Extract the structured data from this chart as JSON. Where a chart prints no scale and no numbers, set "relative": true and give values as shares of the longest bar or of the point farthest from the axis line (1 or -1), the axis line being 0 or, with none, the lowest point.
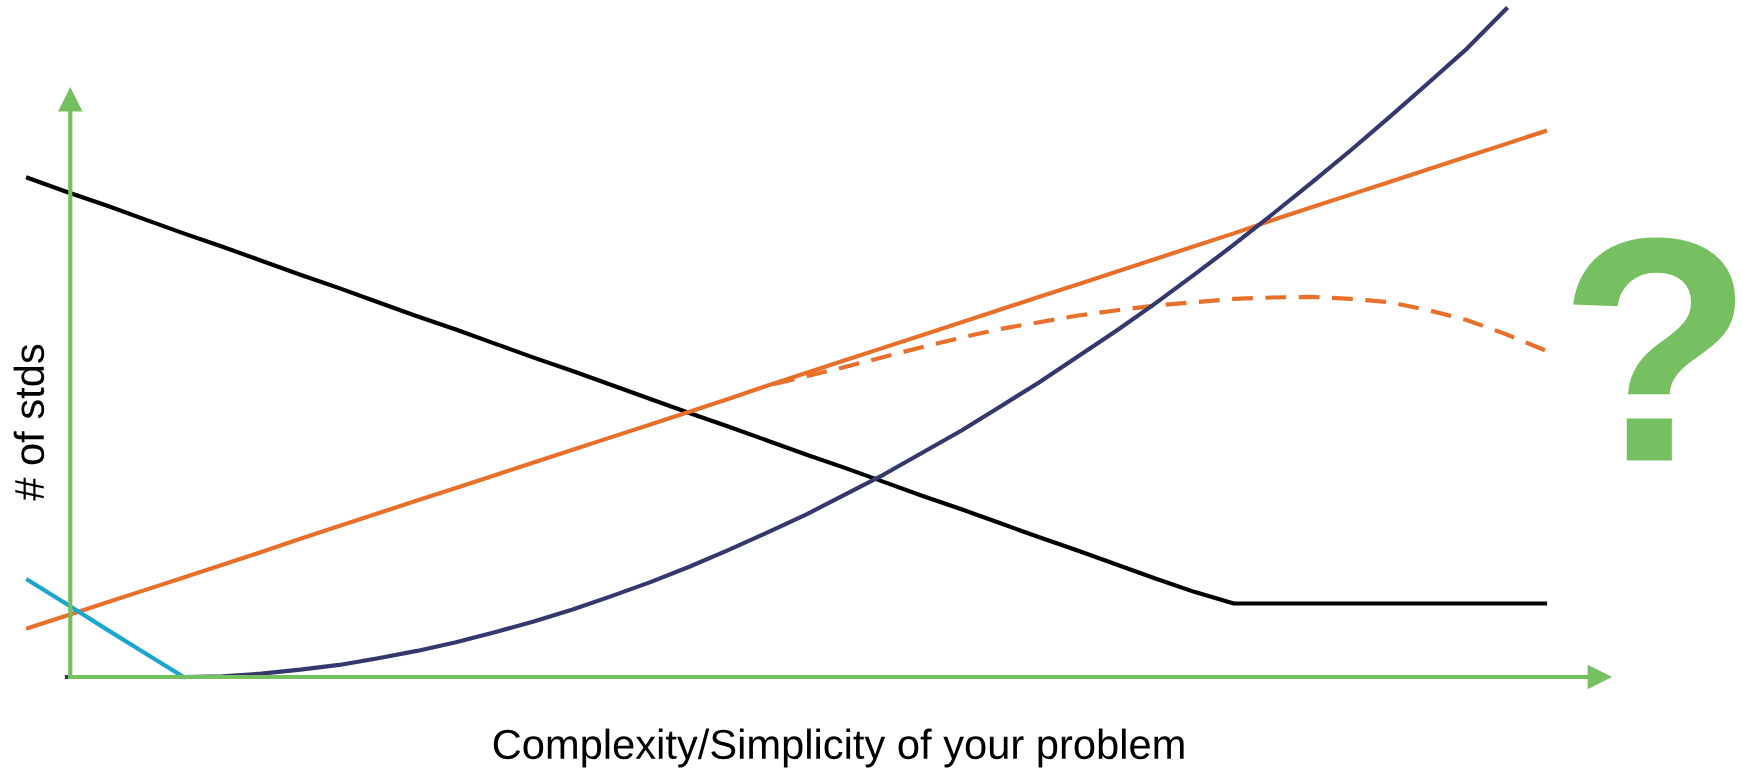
{
  "chart_data": {
    "type": "line",
    "relative": true,
    "xlabel": "Complexity/Simplicity of your problem",
    "ylabel": "# of stds",
    "annotations": [
      "?"
    ],
    "legend": false,
    "marker": "none",
    "categories": [
      null,
      null,
      null,
      null,
      null,
      null,
      null,
      null,
      null,
      null,
      null,
      null,
      null,
      null,
      null,
      null,
      null,
      null,
      null,
      null,
      null,
      null,
      null,
      null,
      null,
      null,
      null,
      null,
      null,
      null,
      null,
      null,
      null,
      null,
      null,
      null,
      null,
      null,
      null,
      null
    ],
    "series": [
      {
        "color": "#000000",
        "line_style": "solid",
        "values": [
          0.747,
          0.726,
          0.706,
          0.685,
          0.664,
          0.644,
          0.623,
          0.602,
          0.582,
          0.561,
          0.54,
          0.52,
          0.499,
          0.478,
          0.458,
          0.437,
          0.416,
          0.395,
          0.375,
          0.354,
          0.333,
          0.313,
          0.292,
          0.271,
          0.251,
          0.23,
          0.209,
          0.189,
          0.168,
          0.147,
          0.127,
          0.11,
          0.11,
          0.11,
          0.11,
          0.11,
          0.11,
          0.11,
          0.11,
          0.11
        ]
      },
      {
        "color": "#e8702a",
        "line_style": "solid",
        "values": [
          0.073,
          0.092,
          0.111,
          0.13,
          0.149,
          0.168,
          0.187,
          0.207,
          0.226,
          0.245,
          0.264,
          0.283,
          0.302,
          0.321,
          0.34,
          0.359,
          0.378,
          0.397,
          0.416,
          0.436,
          0.455,
          0.474,
          0.493,
          0.512,
          0.531,
          0.55,
          0.569,
          0.588,
          0.607,
          0.626,
          0.645,
          0.664,
          0.684,
          0.703,
          0.722,
          0.741,
          0.76,
          0.779,
          0.798,
          0.817
        ]
      },
      {
        "color": "#e8702a",
        "line_style": "dashed",
        "values": [
          null,
          null,
          null,
          null,
          null,
          null,
          null,
          null,
          null,
          null,
          null,
          null,
          null,
          null,
          null,
          null,
          null,
          null,
          null,
          0.436,
          0.45,
          0.464,
          0.479,
          0.494,
          0.508,
          0.521,
          0.531,
          0.541,
          0.549,
          0.556,
          0.561,
          0.566,
          0.568,
          0.569,
          0.566,
          0.561,
          0.549,
          0.534,
          0.513,
          0.489
        ]
      },
      {
        "color": "#35386e",
        "line_style": "solid",
        "values": [
          null,
          0,
          0,
          0,
          0,
          0.001,
          0.005,
          0.011,
          0.018,
          0.028,
          0.039,
          0.052,
          0.067,
          0.083,
          0.101,
          0.121,
          0.142,
          0.165,
          0.19,
          0.216,
          0.243,
          0.273,
          0.303,
          0.336,
          0.369,
          0.405,
          0.441,
          0.48,
          0.519,
          0.56,
          0.603,
          0.647,
          0.693,
          0.74,
          0.788,
          0.838,
          0.889,
          0.941,
          1.0,
          null
        ]
      },
      {
        "color": "#1ba6cf",
        "line_style": "solid",
        "values": [
          0.145,
          0.109,
          0.072,
          0.036,
          0,
          null,
          null,
          null,
          null,
          null,
          null,
          null,
          null,
          null,
          null,
          null,
          null,
          null,
          null,
          null,
          null,
          null,
          null,
          null,
          null,
          null,
          null,
          null,
          null,
          null,
          null,
          null,
          null,
          null,
          null,
          null,
          null,
          null,
          null,
          null
        ]
      }
    ]
  }
}
